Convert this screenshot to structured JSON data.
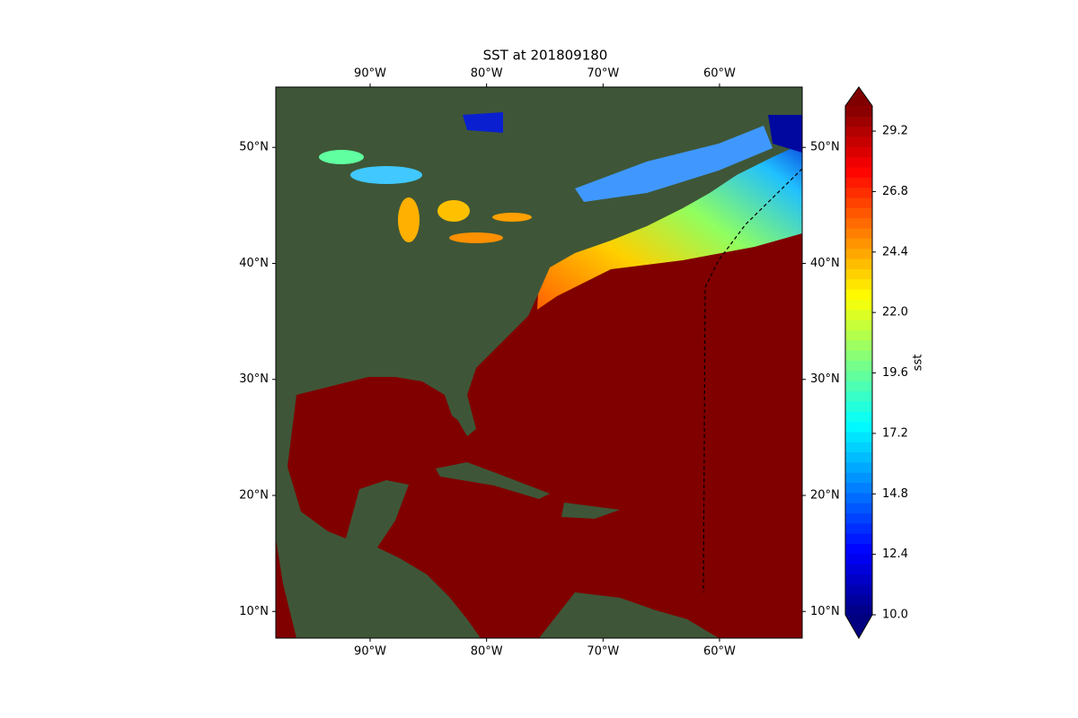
{
  "title": "SST at 201809180",
  "map": {
    "lonlim": [
      -98.1,
      -52.9
    ],
    "latlim": [
      7.7,
      55.2
    ],
    "lonticks": [
      {
        "value": -90,
        "label": "90°W"
      },
      {
        "value": -80,
        "label": "80°W"
      },
      {
        "value": -70,
        "label": "70°W"
      },
      {
        "value": -60,
        "label": "60°W"
      }
    ],
    "latticks": [
      {
        "value": 10,
        "label": "10°N"
      },
      {
        "value": 20,
        "label": "20°N"
      },
      {
        "value": 30,
        "label": "30°N"
      },
      {
        "value": 40,
        "label": "40°N"
      },
      {
        "value": 50,
        "label": "50°N"
      }
    ]
  },
  "colorbar": {
    "label": "sst",
    "clim": [
      10,
      30.2
    ],
    "ticks": [
      {
        "value": 10,
        "label": "10.0"
      },
      12.4,
      14.8,
      17.2,
      19.6,
      {
        "value": 22,
        "label": "22.0"
      },
      24.4,
      26.8,
      29.2
    ]
  }
}
